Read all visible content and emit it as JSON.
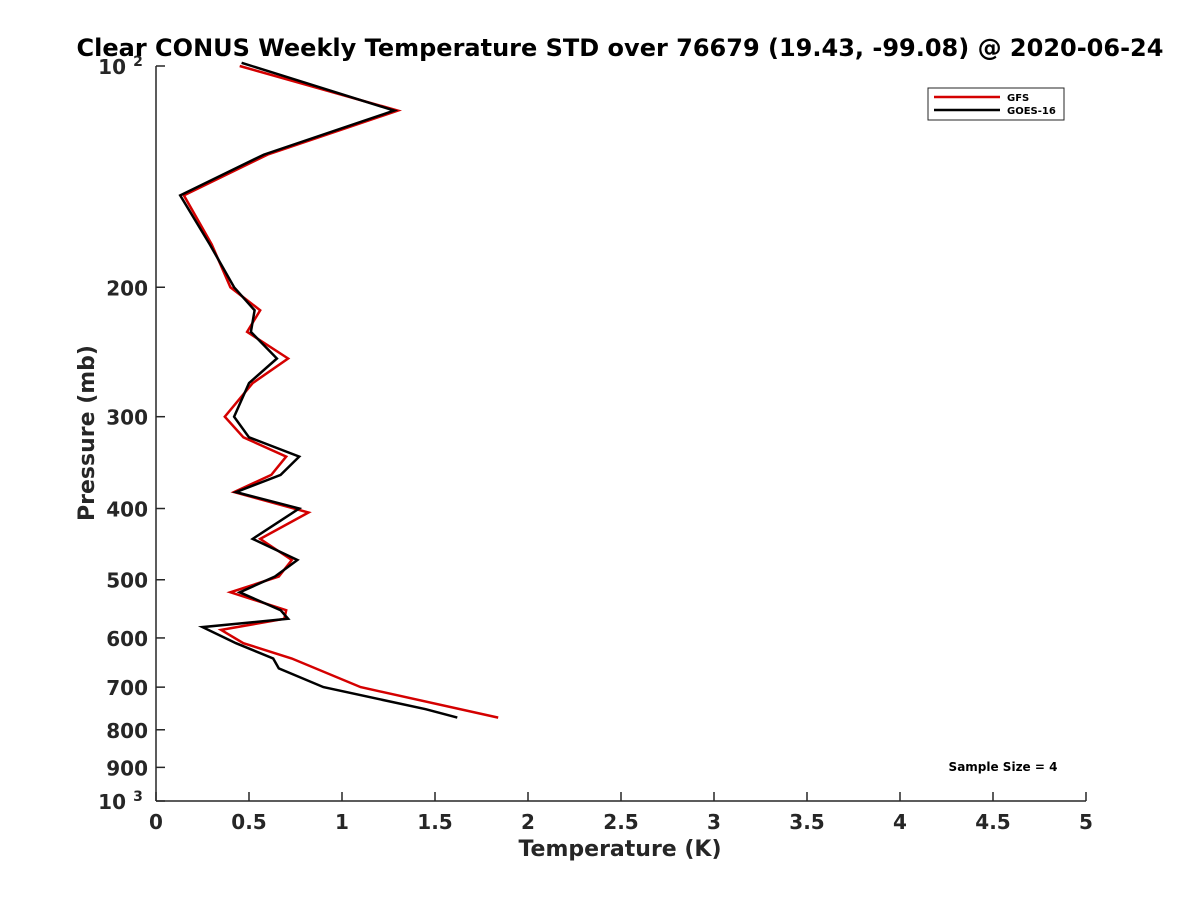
{
  "chart_data": {
    "type": "line",
    "title": "Clear CONUS Weekly Temperature STD over 76679 (19.43, -99.08) @ 2020-06-24",
    "xlabel": "Temperature (K)",
    "ylabel": "Pressure (mb)",
    "xlim": [
      0,
      5
    ],
    "ylim": [
      100,
      1000
    ],
    "y_scale": "log",
    "y_reversed": true,
    "x_ticks": [
      "0",
      "0.5",
      "1",
      "1.5",
      "2",
      "2.5",
      "3",
      "3.5",
      "4",
      "4.5",
      "5"
    ],
    "y_ticks": [
      {
        "value": 100,
        "label": "10",
        "sup": "2"
      },
      {
        "value": 200,
        "label": "200",
        "sup": ""
      },
      {
        "value": 300,
        "label": "300",
        "sup": ""
      },
      {
        "value": 400,
        "label": "400",
        "sup": ""
      },
      {
        "value": 500,
        "label": "500",
        "sup": ""
      },
      {
        "value": 600,
        "label": "600",
        "sup": ""
      },
      {
        "value": 700,
        "label": "700",
        "sup": ""
      },
      {
        "value": 800,
        "label": "800",
        "sup": ""
      },
      {
        "value": 900,
        "label": "900",
        "sup": ""
      },
      {
        "value": 1000,
        "label": "10",
        "sup": "3"
      }
    ],
    "legend_position": "top-right",
    "annotation": "Sample Size = 4",
    "series": [
      {
        "name": "GFS",
        "color": "#d40000",
        "points": [
          [
            0.45,
            100
          ],
          [
            1.3,
            115
          ],
          [
            0.6,
            132
          ],
          [
            0.15,
            150
          ],
          [
            0.3,
            175
          ],
          [
            0.4,
            200
          ],
          [
            0.56,
            215
          ],
          [
            0.49,
            230
          ],
          [
            0.71,
            250
          ],
          [
            0.52,
            270
          ],
          [
            0.37,
            300
          ],
          [
            0.47,
            320
          ],
          [
            0.7,
            340
          ],
          [
            0.62,
            360
          ],
          [
            0.42,
            380
          ],
          [
            0.82,
            405
          ],
          [
            0.56,
            440
          ],
          [
            0.73,
            470
          ],
          [
            0.66,
            495
          ],
          [
            0.4,
            520
          ],
          [
            0.7,
            550
          ],
          [
            0.69,
            565
          ],
          [
            0.35,
            585
          ],
          [
            0.47,
            610
          ],
          [
            0.73,
            640
          ],
          [
            1.1,
            700
          ],
          [
            1.84,
            770
          ]
        ]
      },
      {
        "name": "GOES-16",
        "color": "#000000",
        "points": [
          [
            0.46,
            99
          ],
          [
            1.28,
            115
          ],
          [
            0.58,
            132
          ],
          [
            0.13,
            150
          ],
          [
            0.29,
            175
          ],
          [
            0.42,
            200
          ],
          [
            0.53,
            215
          ],
          [
            0.51,
            230
          ],
          [
            0.65,
            250
          ],
          [
            0.5,
            270
          ],
          [
            0.42,
            300
          ],
          [
            0.5,
            320
          ],
          [
            0.77,
            340
          ],
          [
            0.67,
            360
          ],
          [
            0.43,
            380
          ],
          [
            0.77,
            400
          ],
          [
            0.52,
            440
          ],
          [
            0.76,
            470
          ],
          [
            0.64,
            495
          ],
          [
            0.45,
            520
          ],
          [
            0.67,
            550
          ],
          [
            0.71,
            565
          ],
          [
            0.25,
            580
          ],
          [
            0.43,
            610
          ],
          [
            0.63,
            640
          ],
          [
            0.66,
            660
          ],
          [
            0.9,
            700
          ],
          [
            1.45,
            750
          ],
          [
            1.62,
            770
          ]
        ]
      }
    ]
  }
}
